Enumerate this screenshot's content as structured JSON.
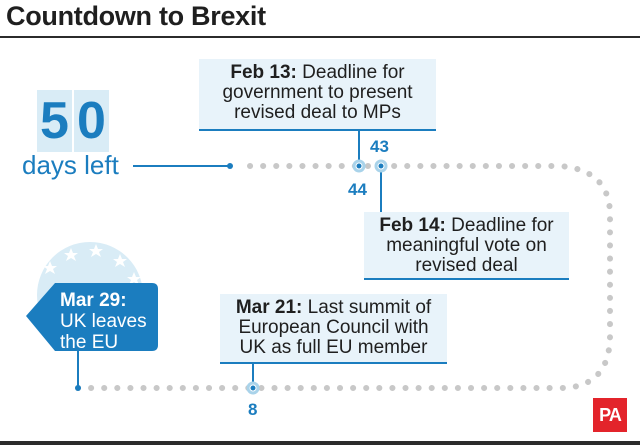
{
  "title": "Countdown to Brexit",
  "countdown": {
    "digit1": "5",
    "digit2": "0",
    "label": "days left"
  },
  "events": [
    {
      "date": "Feb 13:",
      "line1": " Deadline for",
      "line2": "government to present",
      "line3": "revised deal to MPs",
      "days_before": "44"
    },
    {
      "date": "Feb 14:",
      "line1": " Deadline for",
      "line2": "meaningful vote on",
      "line3": "revised deal",
      "days_before": "43"
    },
    {
      "date": "Mar 21:",
      "line1": " Last summit of",
      "line2": "European Council with",
      "line3": "UK as full EU member",
      "days_before": "8"
    }
  ],
  "final": {
    "date": "Mar 29:",
    "line1": "UK leaves",
    "line2": "the EU"
  },
  "logo": "PA",
  "colors": {
    "accent": "#1b7dbf",
    "panel": "#e8f3fa",
    "dots": "#c8c8c8",
    "logo_bg": "#e3242b"
  }
}
